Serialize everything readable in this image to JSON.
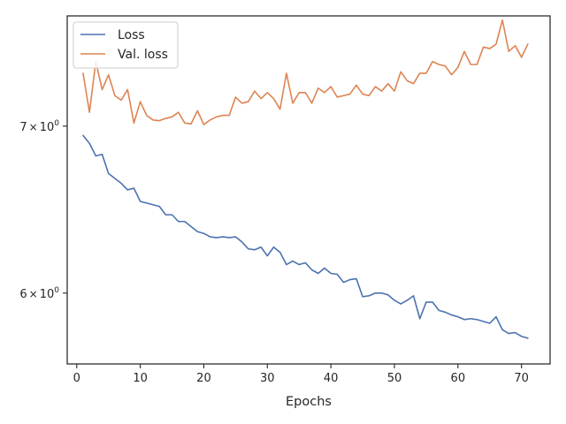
{
  "chart_data": {
    "type": "line",
    "title": "",
    "xlabel": "Epochs",
    "ylabel": "",
    "yscale": "log",
    "grid": false,
    "legend_position": "top-left",
    "xlim": [
      -1.5,
      74.5
    ],
    "ylim": [
      5.62,
      7.75
    ],
    "x_ticks": [
      0,
      10,
      20,
      30,
      40,
      50,
      60,
      70
    ],
    "x_tick_labels": [
      "0",
      "10",
      "20",
      "30",
      "40",
      "50",
      "60",
      "70"
    ],
    "y_ticks": [
      6,
      7
    ],
    "y_tick_labels": [
      {
        "base": "6",
        "sup": "0"
      },
      {
        "base": "7",
        "sup": "0"
      }
    ],
    "x": [
      1,
      2,
      3,
      4,
      5,
      6,
      7,
      8,
      9,
      10,
      11,
      12,
      13,
      14,
      15,
      16,
      17,
      18,
      19,
      20,
      21,
      22,
      23,
      24,
      25,
      26,
      27,
      28,
      29,
      30,
      31,
      32,
      33,
      34,
      35,
      36,
      37,
      38,
      39,
      40,
      41,
      42,
      43,
      44,
      45,
      46,
      47,
      48,
      49,
      50,
      51,
      52,
      53,
      54,
      55,
      56,
      57,
      58,
      59,
      60,
      61,
      62,
      63,
      64,
      65,
      66,
      67,
      68,
      69,
      70,
      71
    ],
    "series": [
      {
        "name": "Loss",
        "color": "#4c72b0",
        "values": [
          6.94,
          6.89,
          6.81,
          6.82,
          6.7,
          6.67,
          6.64,
          6.6,
          6.61,
          6.53,
          6.52,
          6.51,
          6.5,
          6.45,
          6.45,
          6.41,
          6.41,
          6.38,
          6.35,
          6.34,
          6.32,
          6.315,
          6.32,
          6.315,
          6.32,
          6.29,
          6.25,
          6.245,
          6.26,
          6.21,
          6.26,
          6.23,
          6.16,
          6.18,
          6.16,
          6.17,
          6.13,
          6.11,
          6.14,
          6.11,
          6.105,
          6.06,
          6.075,
          6.08,
          5.98,
          5.985,
          6.0,
          6.0,
          5.99,
          5.96,
          5.94,
          5.96,
          5.985,
          5.86,
          5.95,
          5.95,
          5.905,
          5.895,
          5.88,
          5.87,
          5.855,
          5.86,
          5.855,
          5.845,
          5.835,
          5.87,
          5.8,
          5.78,
          5.785,
          5.765,
          5.755
        ]
      },
      {
        "name": "Val. loss",
        "color": "#dd8452",
        "values": [
          7.35,
          7.09,
          7.43,
          7.24,
          7.34,
          7.2,
          7.17,
          7.24,
          7.02,
          7.16,
          7.07,
          7.04,
          7.035,
          7.05,
          7.06,
          7.09,
          7.02,
          7.015,
          7.1,
          7.01,
          7.04,
          7.06,
          7.07,
          7.07,
          7.19,
          7.15,
          7.16,
          7.23,
          7.18,
          7.22,
          7.18,
          7.11,
          7.35,
          7.15,
          7.22,
          7.22,
          7.15,
          7.25,
          7.22,
          7.26,
          7.19,
          7.2,
          7.21,
          7.27,
          7.21,
          7.2,
          7.26,
          7.23,
          7.28,
          7.23,
          7.36,
          7.3,
          7.28,
          7.35,
          7.35,
          7.43,
          7.41,
          7.4,
          7.34,
          7.39,
          7.5,
          7.41,
          7.41,
          7.53,
          7.52,
          7.55,
          7.72,
          7.5,
          7.54,
          7.46,
          7.55
        ]
      }
    ]
  }
}
